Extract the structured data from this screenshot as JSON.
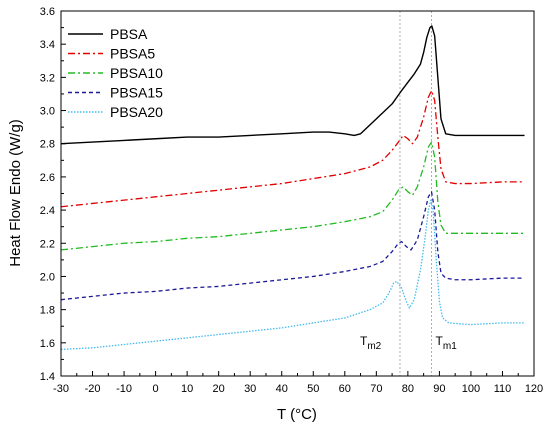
{
  "chart_data": {
    "type": "line",
    "xlabel": "T (°C)",
    "ylabel": "Heat Flow Endo (W/g)",
    "xlim": [
      -30,
      120
    ],
    "ylim": [
      1.4,
      3.6
    ],
    "xticks": [
      -30,
      -20,
      -10,
      0,
      10,
      20,
      30,
      40,
      50,
      60,
      70,
      80,
      90,
      100,
      110,
      120
    ],
    "yticks": [
      1.4,
      1.6,
      1.8,
      2.0,
      2.2,
      2.4,
      2.6,
      2.8,
      3.0,
      3.2,
      3.4,
      3.6
    ],
    "xtick_labels": [
      "-30",
      "-20",
      "-10",
      "0",
      "10",
      "20",
      "30",
      "40",
      "50",
      "60",
      "70",
      "80",
      "90",
      "100",
      "110",
      "120"
    ],
    "ytick_labels": [
      "1.4",
      "1.6",
      "1.8",
      "2.0",
      "2.2",
      "2.4",
      "2.6",
      "2.8",
      "3.0",
      "3.2",
      "3.4",
      "3.6"
    ],
    "legend_position": "top-left",
    "grid": false,
    "reference_lines": [
      {
        "x": 77.5,
        "label": "T",
        "subscript": "m2"
      },
      {
        "x": 87.5,
        "label": "T",
        "subscript": "m1"
      }
    ],
    "series": [
      {
        "name": "PBSA",
        "color": "#000000",
        "dash": "solid",
        "points": [
          [
            -30,
            2.8
          ],
          [
            -20,
            2.81
          ],
          [
            -10,
            2.82
          ],
          [
            0,
            2.83
          ],
          [
            10,
            2.84
          ],
          [
            20,
            2.84
          ],
          [
            30,
            2.85
          ],
          [
            40,
            2.86
          ],
          [
            50,
            2.87
          ],
          [
            55,
            2.87
          ],
          [
            60,
            2.86
          ],
          [
            63,
            2.85
          ],
          [
            65,
            2.86
          ],
          [
            70,
            2.95
          ],
          [
            75,
            3.04
          ],
          [
            78,
            3.12
          ],
          [
            80,
            3.17
          ],
          [
            82,
            3.22
          ],
          [
            84,
            3.28
          ],
          [
            85,
            3.35
          ],
          [
            86,
            3.44
          ],
          [
            87,
            3.5
          ],
          [
            87.6,
            3.51
          ],
          [
            88.5,
            3.45
          ],
          [
            89.5,
            3.2
          ],
          [
            90.5,
            2.95
          ],
          [
            92,
            2.86
          ],
          [
            95,
            2.85
          ],
          [
            100,
            2.85
          ],
          [
            110,
            2.85
          ],
          [
            117,
            2.85
          ]
        ]
      },
      {
        "name": "PBSA5",
        "color": "#e00000",
        "dash": "dashdot",
        "points": [
          [
            -30,
            2.42
          ],
          [
            -20,
            2.44
          ],
          [
            -10,
            2.46
          ],
          [
            0,
            2.48
          ],
          [
            10,
            2.5
          ],
          [
            20,
            2.52
          ],
          [
            30,
            2.54
          ],
          [
            40,
            2.56
          ],
          [
            50,
            2.59
          ],
          [
            60,
            2.62
          ],
          [
            68,
            2.66
          ],
          [
            72,
            2.7
          ],
          [
            75,
            2.76
          ],
          [
            77,
            2.81
          ],
          [
            78.5,
            2.85
          ],
          [
            80,
            2.83
          ],
          [
            81.5,
            2.8
          ],
          [
            83,
            2.84
          ],
          [
            85,
            2.96
          ],
          [
            86.5,
            3.08
          ],
          [
            87.5,
            3.12
          ],
          [
            88.5,
            3.06
          ],
          [
            89.5,
            2.84
          ],
          [
            90.5,
            2.65
          ],
          [
            92,
            2.57
          ],
          [
            95,
            2.56
          ],
          [
            100,
            2.56
          ],
          [
            110,
            2.57
          ],
          [
            117,
            2.57
          ]
        ]
      },
      {
        "name": "PBSA10",
        "color": "#22bb22",
        "dash": "dashdot",
        "points": [
          [
            -30,
            2.16
          ],
          [
            -20,
            2.18
          ],
          [
            -10,
            2.2
          ],
          [
            0,
            2.21
          ],
          [
            10,
            2.23
          ],
          [
            20,
            2.24
          ],
          [
            30,
            2.26
          ],
          [
            40,
            2.28
          ],
          [
            50,
            2.3
          ],
          [
            60,
            2.33
          ],
          [
            68,
            2.36
          ],
          [
            72,
            2.39
          ],
          [
            75,
            2.46
          ],
          [
            77,
            2.52
          ],
          [
            78.5,
            2.54
          ],
          [
            80,
            2.51
          ],
          [
            81.5,
            2.49
          ],
          [
            83,
            2.54
          ],
          [
            85,
            2.66
          ],
          [
            86.5,
            2.78
          ],
          [
            87.5,
            2.81
          ],
          [
            88.5,
            2.72
          ],
          [
            89.5,
            2.45
          ],
          [
            90.5,
            2.31
          ],
          [
            92,
            2.26
          ],
          [
            95,
            2.26
          ],
          [
            100,
            2.26
          ],
          [
            110,
            2.26
          ],
          [
            117,
            2.26
          ]
        ]
      },
      {
        "name": "PBSA15",
        "color": "#1a1a99",
        "dash": "dashed",
        "points": [
          [
            -30,
            1.86
          ],
          [
            -20,
            1.88
          ],
          [
            -10,
            1.9
          ],
          [
            0,
            1.91
          ],
          [
            10,
            1.93
          ],
          [
            20,
            1.94
          ],
          [
            30,
            1.96
          ],
          [
            40,
            1.98
          ],
          [
            50,
            2.0
          ],
          [
            60,
            2.03
          ],
          [
            68,
            2.06
          ],
          [
            72,
            2.09
          ],
          [
            75,
            2.15
          ],
          [
            77,
            2.2
          ],
          [
            78,
            2.21
          ],
          [
            79.5,
            2.18
          ],
          [
            81,
            2.16
          ],
          [
            83,
            2.22
          ],
          [
            85,
            2.36
          ],
          [
            86.5,
            2.48
          ],
          [
            87.5,
            2.51
          ],
          [
            88.5,
            2.4
          ],
          [
            89.5,
            2.15
          ],
          [
            90.5,
            2.02
          ],
          [
            92,
            1.99
          ],
          [
            95,
            1.98
          ],
          [
            100,
            1.98
          ],
          [
            110,
            1.99
          ],
          [
            117,
            1.99
          ]
        ]
      },
      {
        "name": "PBSA20",
        "color": "#44bbee",
        "dash": "dotted",
        "points": [
          [
            -30,
            1.56
          ],
          [
            -20,
            1.57
          ],
          [
            -10,
            1.59
          ],
          [
            0,
            1.61
          ],
          [
            10,
            1.63
          ],
          [
            20,
            1.65
          ],
          [
            30,
            1.67
          ],
          [
            40,
            1.69
          ],
          [
            50,
            1.72
          ],
          [
            60,
            1.75
          ],
          [
            68,
            1.8
          ],
          [
            72,
            1.84
          ],
          [
            74,
            1.9
          ],
          [
            75.5,
            1.96
          ],
          [
            76.5,
            1.97
          ],
          [
            78,
            1.93
          ],
          [
            79.5,
            1.85
          ],
          [
            80.5,
            1.81
          ],
          [
            82,
            1.86
          ],
          [
            84,
            2.04
          ],
          [
            85.5,
            2.24
          ],
          [
            86.5,
            2.4
          ],
          [
            87.3,
            2.46
          ],
          [
            88,
            2.4
          ],
          [
            89,
            2.1
          ],
          [
            90,
            1.85
          ],
          [
            91,
            1.75
          ],
          [
            93,
            1.72
          ],
          [
            100,
            1.71
          ],
          [
            110,
            1.72
          ],
          [
            117,
            1.72
          ]
        ]
      }
    ]
  }
}
